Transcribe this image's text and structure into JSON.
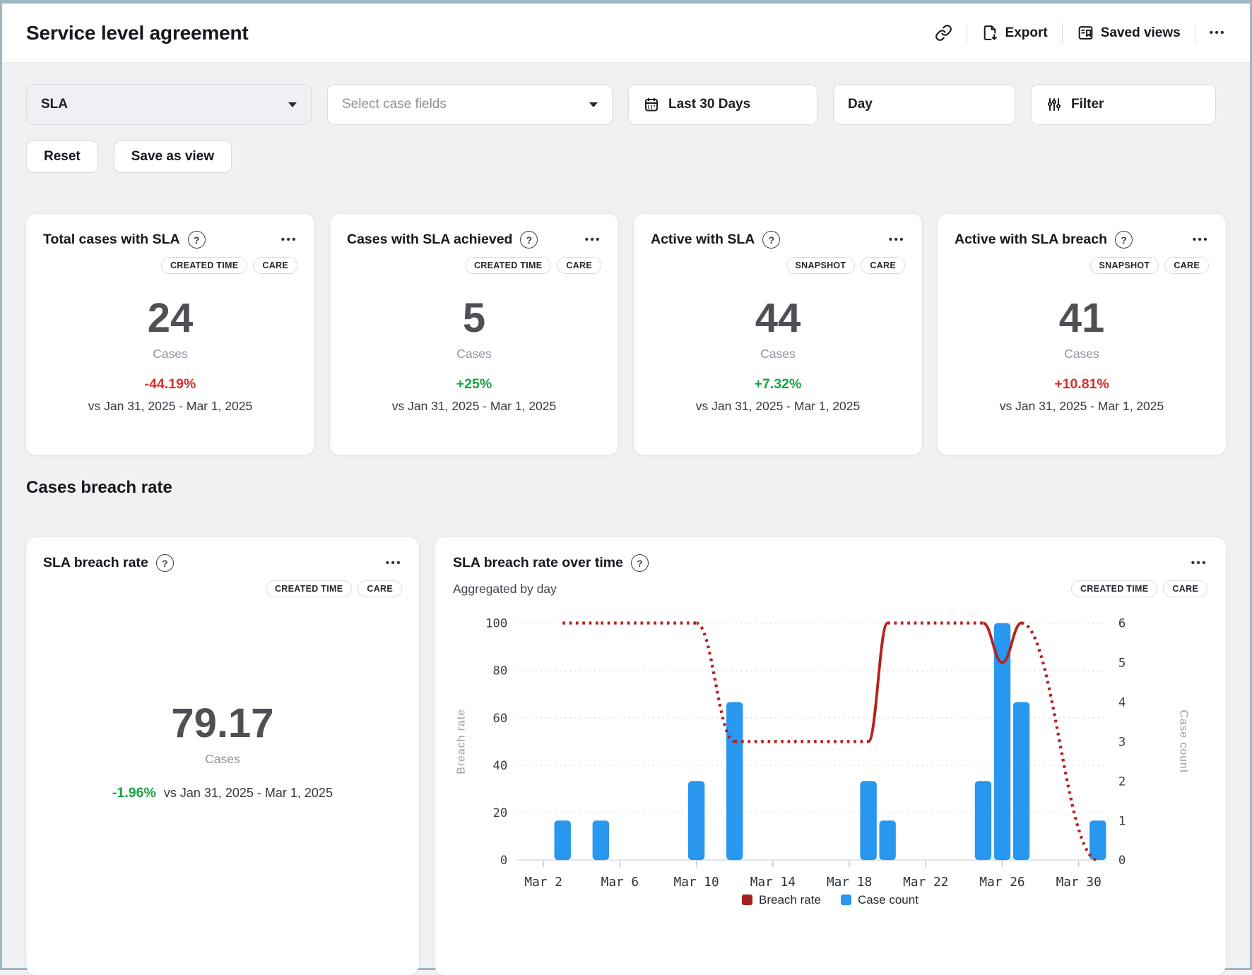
{
  "window": {
    "title": "Service level agreement"
  },
  "header": {
    "export_label": "Export",
    "saved_views_label": "Saved views",
    "icons": [
      "link-icon",
      "export-icon",
      "saved-views-icon",
      "more-icon"
    ]
  },
  "filters": {
    "sla": {
      "value": "SLA"
    },
    "case_fields": {
      "placeholder": "Select case fields"
    },
    "date_range": {
      "value": "Last 30 Days",
      "icon": "calendar-icon"
    },
    "granularity": {
      "value": "Day"
    },
    "filter": {
      "label": "Filter",
      "icon": "sliders-icon"
    },
    "reset_label": "Reset",
    "save_as_view_label": "Save as view"
  },
  "colors": {
    "negative": "#d92d2d",
    "positive": "#18a244",
    "bar_blue": "#2897f0",
    "line_red": "#b3231d"
  },
  "kpi_cards": [
    {
      "title": "Total cases with SLA",
      "badges": [
        "CREATED TIME",
        "CARE"
      ],
      "value": "24",
      "unit": "Cases",
      "delta": "-44.19%",
      "delta_color": "#d92d2d",
      "compare": "vs Jan 31, 2025 - Mar 1, 2025"
    },
    {
      "title": "Cases with SLA achieved",
      "badges": [
        "CREATED TIME",
        "CARE"
      ],
      "value": "5",
      "unit": "Cases",
      "delta": "+25%",
      "delta_color": "#18a244",
      "compare": "vs Jan 31, 2025 - Mar 1, 2025"
    },
    {
      "title": "Active with SLA",
      "badges": [
        "SNAPSHOT",
        "CARE"
      ],
      "value": "44",
      "unit": "Cases",
      "delta": "+7.32%",
      "delta_color": "#18a244",
      "compare": "vs Jan 31, 2025 - Mar 1, 2025"
    },
    {
      "title": "Active with SLA breach",
      "badges": [
        "SNAPSHOT",
        "CARE"
      ],
      "value": "41",
      "unit": "Cases",
      "delta": "+10.81%",
      "delta_color": "#d92d2d",
      "compare": "vs Jan 31, 2025 - Mar 1, 2025"
    }
  ],
  "section_title": "Cases breach rate",
  "breach_rate_card": {
    "title": "SLA breach rate",
    "badges": [
      "CREATED TIME",
      "CARE"
    ],
    "value": "79.17",
    "unit": "Cases",
    "delta": "-1.96%",
    "delta_color": "#18a244",
    "compare": "vs Jan 31, 2025 - Mar 1, 2025"
  },
  "chart_card": {
    "title": "SLA breach rate over time",
    "subtitle": "Aggregated by day",
    "badges": [
      "CREATED TIME",
      "CARE"
    ]
  },
  "chart_data": {
    "type": "bar+line",
    "x_axis": {
      "unit": "day of March 2025",
      "day_min": 2,
      "day_max": 31,
      "tick_days": [
        2,
        6,
        10,
        14,
        18,
        22,
        26,
        30
      ],
      "tick_labels": [
        "Mar 2",
        "Mar 6",
        "Mar 10",
        "Mar 14",
        "Mar 18",
        "Mar 22",
        "Mar 26",
        "Mar 30"
      ]
    },
    "y_left": {
      "label": "Breach rate",
      "min": 0,
      "max": 100,
      "ticks": [
        0,
        20,
        40,
        60,
        80,
        100
      ]
    },
    "y_right": {
      "label": "Case count",
      "min": 0,
      "max": 6,
      "ticks": [
        0,
        1,
        2,
        3,
        4,
        5,
        6
      ]
    },
    "bars": {
      "name": "Case count",
      "color": "#2897f0",
      "points": [
        {
          "day": 3,
          "count": 1
        },
        {
          "day": 5,
          "count": 1
        },
        {
          "day": 10,
          "count": 2
        },
        {
          "day": 12,
          "count": 4
        },
        {
          "day": 19,
          "count": 2
        },
        {
          "day": 20,
          "count": 1
        },
        {
          "day": 25,
          "count": 2
        },
        {
          "day": 26,
          "count": 6
        },
        {
          "day": 27,
          "count": 4
        },
        {
          "day": 31,
          "count": 1
        }
      ]
    },
    "line": {
      "name": "Breach rate",
      "color": "#b3231d",
      "style_rule": "solid between consecutive days, dotted across gaps",
      "points": [
        {
          "day": 3,
          "value": 100
        },
        {
          "day": 5,
          "value": 100
        },
        {
          "day": 10,
          "value": 100
        },
        {
          "day": 12,
          "value": 50
        },
        {
          "day": 19,
          "value": 50
        },
        {
          "day": 20,
          "value": 100
        },
        {
          "day": 25,
          "value": 100
        },
        {
          "day": 26,
          "value": 83.33
        },
        {
          "day": 27,
          "value": 100
        },
        {
          "day": 31,
          "value": 0
        }
      ]
    },
    "legend": [
      {
        "label": "Breach rate",
        "color": "#a41f1a"
      },
      {
        "label": "Case count",
        "color": "#2897f0"
      }
    ],
    "grid": "horizontal dotted",
    "legend_position": "bottom-center"
  }
}
